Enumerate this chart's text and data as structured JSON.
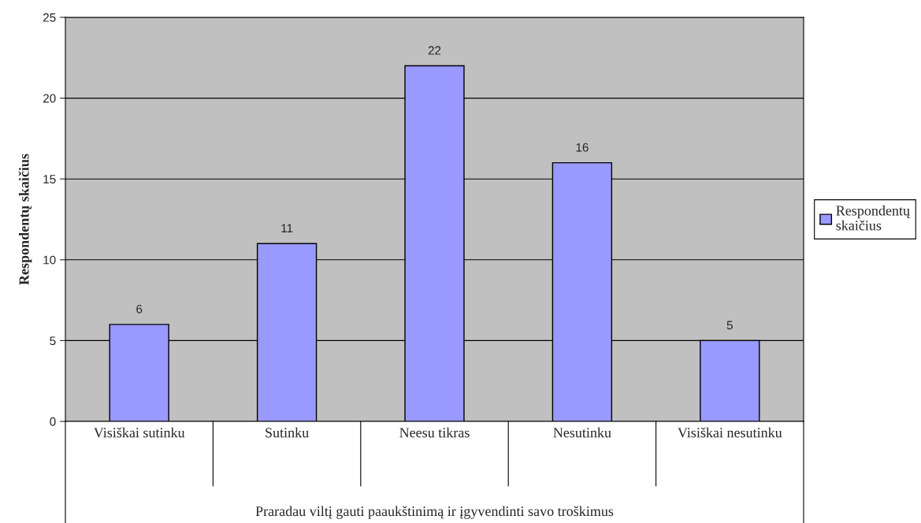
{
  "chart_data": {
    "type": "bar",
    "categories": [
      "Visiškai sutinku",
      "Sutinku",
      "Neesu tikras",
      "Nesutinku",
      "Visiškai nesutinku"
    ],
    "series": [
      {
        "name": "Respondentų skaičius",
        "color": "#9999ff",
        "values": [
          6,
          11,
          22,
          16,
          5
        ]
      }
    ],
    "xlabel": "Praradau viltį gauti paaukštinimą ir įgyvendinti savo troškimus",
    "ylabel": "Respondentų skaičius",
    "ylim": [
      0,
      25
    ],
    "yticks": [
      0,
      5,
      10,
      15,
      20,
      25
    ],
    "grid": "y",
    "legend": "right",
    "data_labels": true
  }
}
